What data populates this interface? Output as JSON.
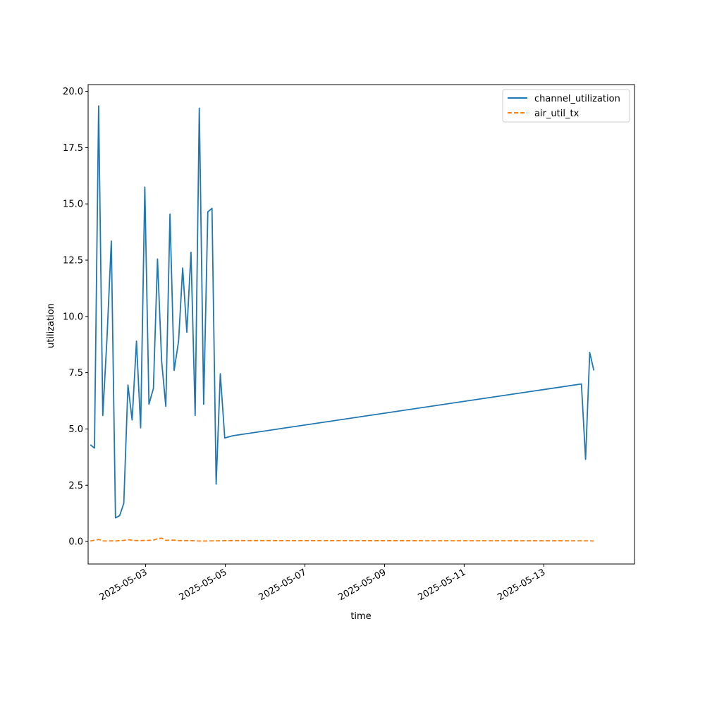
{
  "chart_data": {
    "type": "line",
    "title": "",
    "xlabel": "time",
    "ylabel": "utilization",
    "x_axis": {
      "scale": "date",
      "range": [
        "2025-05-01T13:20",
        "2025-05-15T06:40"
      ],
      "ticks": [
        "2025-05-03",
        "2025-05-05",
        "2025-05-07",
        "2025-05-09",
        "2025-05-11",
        "2025-05-13"
      ]
    },
    "y_axis": {
      "range": [
        -1.0,
        20.3
      ],
      "ticks": [
        0.0,
        2.5,
        5.0,
        7.5,
        10.0,
        12.5,
        15.0,
        17.5,
        20.0
      ],
      "tick_labels": [
        "0.0",
        "2.5",
        "5.0",
        "7.5",
        "10.0",
        "12.5",
        "15.0",
        "17.5",
        "20.0"
      ]
    },
    "grid": false,
    "legend": "top-right",
    "x": [
      "2025-05-01T14:40",
      "2025-05-01T17:10",
      "2025-05-01T19:40",
      "2025-05-01T22:10",
      "2025-05-02T00:40",
      "2025-05-02T03:20",
      "2025-05-02T05:50",
      "2025-05-02T08:20",
      "2025-05-02T10:50",
      "2025-05-02T13:20",
      "2025-05-02T15:50",
      "2025-05-02T18:30",
      "2025-05-02T21:00",
      "2025-05-02T23:30",
      "2025-05-03T02:00",
      "2025-05-03T04:40",
      "2025-05-03T07:10",
      "2025-05-03T09:40",
      "2025-05-03T12:10",
      "2025-05-03T14:40",
      "2025-05-03T17:10",
      "2025-05-03T19:50",
      "2025-05-03T22:20",
      "2025-05-04T00:50",
      "2025-05-04T03:20",
      "2025-05-04T05:50",
      "2025-05-04T08:20",
      "2025-05-04T11:00",
      "2025-05-04T13:30",
      "2025-05-04T16:00",
      "2025-05-04T18:30",
      "2025-05-04T21:00",
      "2025-05-04T23:40",
      "2025-05-05T02:10",
      "2025-05-05T04:40",
      "2025-05-13T22:40",
      "2025-05-14T01:10",
      "2025-05-14T03:40",
      "2025-05-14T06:10"
    ],
    "series": [
      {
        "name": "channel_utilization",
        "color": "#1f77b4",
        "style": "solid",
        "values": [
          4.3,
          4.15,
          19.35,
          5.6,
          9.0,
          13.35,
          1.05,
          1.15,
          1.7,
          6.95,
          5.4,
          8.9,
          5.05,
          15.75,
          6.1,
          6.8,
          12.55,
          8.0,
          6.0,
          14.55,
          7.6,
          8.9,
          12.15,
          9.3,
          12.85,
          5.6,
          19.25,
          6.1,
          14.65,
          14.8,
          2.55,
          7.45,
          4.6,
          4.65,
          4.7,
          7.0,
          3.65,
          8.4,
          7.6
        ]
      },
      {
        "name": "air_util_tx",
        "color": "#ff7f0e",
        "style": "dashed",
        "values": [
          0.02,
          0.06,
          0.09,
          0.03,
          0.02,
          0.03,
          0.02,
          0.04,
          0.05,
          0.08,
          0.06,
          0.04,
          0.04,
          0.05,
          0.05,
          0.06,
          0.12,
          0.15,
          0.05,
          0.06,
          0.06,
          0.04,
          0.04,
          0.04,
          0.04,
          0.03,
          0.02,
          0.02,
          0.02,
          0.03,
          0.03,
          0.03,
          0.04,
          0.04,
          0.04,
          0.03,
          0.03,
          0.03,
          0.02
        ]
      }
    ]
  }
}
